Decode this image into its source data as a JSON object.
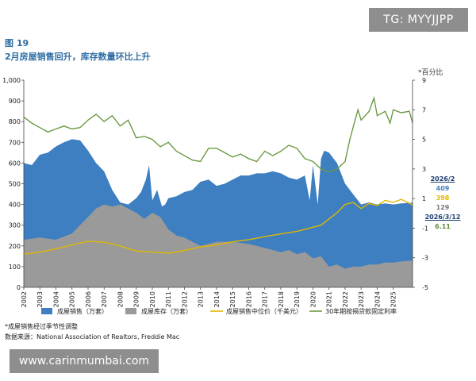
{
  "figure": {
    "number": "图 19",
    "title": "2月房屋销售回升，库存数量环比上升",
    "right_axis_unit": "*百分比"
  },
  "side_panel": {
    "date1": "2026/2",
    "sales": "409",
    "price": "398",
    "inventory": "129",
    "date2": "2026/3/12",
    "rate": "6.11",
    "colors": {
      "date": "#1f3f6e",
      "sales": "#3d7fc1",
      "price": "#e0b800",
      "inventory": "#777777",
      "rate": "#5e8a3a"
    }
  },
  "footnotes": {
    "note": "*成屋销售经过季节性调整",
    "source": "数据来源：National Association of Realtors, Freddie Mac"
  },
  "watermarks": {
    "tg": "TG: MYYJJPP",
    "url": "www.carinmumbai.com"
  },
  "chart_data": {
    "type": "area",
    "title": "2月房屋销售回升，库存数量环比上升",
    "x_ticks": [
      "2002",
      "2003",
      "2004",
      "2005",
      "2006",
      "2007",
      "2008",
      "2009",
      "2010",
      "2011",
      "2012",
      "2013",
      "2014",
      "2015",
      "2016",
      "2017",
      "2018",
      "2019",
      "2020",
      "2021",
      "2022",
      "2023",
      "2024",
      "2025"
    ],
    "x_range": [
      2002,
      2026.2
    ],
    "y_left": {
      "ticks": [
        "1,000",
        "900",
        "800",
        "700",
        "600",
        "500",
        "400",
        "300",
        "200",
        "100",
        "0"
      ],
      "range": [
        0,
        1000
      ]
    },
    "y_right": {
      "ticks": [
        "9",
        "7",
        "5",
        "3",
        "1",
        "-1",
        "-3",
        "-5"
      ],
      "range": [
        -5,
        9
      ],
      "label": "*百分比"
    },
    "grid": false,
    "legend_position": "bottom",
    "series": [
      {
        "name": "成屋销售（万套）",
        "kind": "area",
        "axis": "left",
        "color": "#3d7fc1",
        "points": [
          [
            2002,
            600
          ],
          [
            2002.5,
            590
          ],
          [
            2003,
            640
          ],
          [
            2003.5,
            650
          ],
          [
            2004,
            680
          ],
          [
            2004.5,
            700
          ],
          [
            2005,
            715
          ],
          [
            2005.5,
            710
          ],
          [
            2006,
            660
          ],
          [
            2006.5,
            600
          ],
          [
            2007,
            560
          ],
          [
            2007.5,
            470
          ],
          [
            2008,
            410
          ],
          [
            2008.5,
            400
          ],
          [
            2009,
            430
          ],
          [
            2009.3,
            460
          ],
          [
            2009.6,
            520
          ],
          [
            2009.8,
            590
          ],
          [
            2010,
            420
          ],
          [
            2010.3,
            470
          ],
          [
            2010.6,
            390
          ],
          [
            2010.8,
            400
          ],
          [
            2011,
            430
          ],
          [
            2011.5,
            440
          ],
          [
            2012,
            460
          ],
          [
            2012.5,
            470
          ],
          [
            2013,
            510
          ],
          [
            2013.5,
            520
          ],
          [
            2014,
            490
          ],
          [
            2014.5,
            500
          ],
          [
            2015,
            520
          ],
          [
            2015.5,
            540
          ],
          [
            2016,
            540
          ],
          [
            2016.5,
            550
          ],
          [
            2017,
            550
          ],
          [
            2017.5,
            560
          ],
          [
            2018,
            550
          ],
          [
            2018.5,
            530
          ],
          [
            2019,
            520
          ],
          [
            2019.5,
            540
          ],
          [
            2019.8,
            420
          ],
          [
            2020,
            590
          ],
          [
            2020.3,
            400
          ],
          [
            2020.5,
            620
          ],
          [
            2020.7,
            660
          ],
          [
            2021,
            650
          ],
          [
            2021.5,
            600
          ],
          [
            2022,
            500
          ],
          [
            2022.5,
            450
          ],
          [
            2023,
            400
          ],
          [
            2023.5,
            410
          ],
          [
            2024,
            400
          ],
          [
            2024.5,
            405
          ],
          [
            2025,
            400
          ],
          [
            2025.5,
            405
          ],
          [
            2026.2,
            409
          ]
        ]
      },
      {
        "name": "成屋库存（万套）",
        "kind": "area",
        "axis": "left",
        "color": "#9a9a9a",
        "points": [
          [
            2002,
            230
          ],
          [
            2003,
            240
          ],
          [
            2004,
            230
          ],
          [
            2005,
            260
          ],
          [
            2006,
            340
          ],
          [
            2006.5,
            380
          ],
          [
            2007,
            400
          ],
          [
            2007.5,
            390
          ],
          [
            2008,
            400
          ],
          [
            2008.5,
            380
          ],
          [
            2009,
            360
          ],
          [
            2009.5,
            330
          ],
          [
            2010,
            360
          ],
          [
            2010.5,
            340
          ],
          [
            2011,
            280
          ],
          [
            2011.5,
            250
          ],
          [
            2012,
            240
          ],
          [
            2012.5,
            220
          ],
          [
            2013,
            200
          ],
          [
            2014,
            220
          ],
          [
            2015,
            220
          ],
          [
            2016,
            210
          ],
          [
            2017,
            190
          ],
          [
            2018,
            170
          ],
          [
            2018.5,
            180
          ],
          [
            2019,
            160
          ],
          [
            2019.5,
            170
          ],
          [
            2020,
            140
          ],
          [
            2020.5,
            150
          ],
          [
            2021,
            100
          ],
          [
            2021.5,
            110
          ],
          [
            2022,
            90
          ],
          [
            2022.5,
            100
          ],
          [
            2023,
            100
          ],
          [
            2023.5,
            110
          ],
          [
            2024,
            110
          ],
          [
            2024.5,
            120
          ],
          [
            2025,
            120
          ],
          [
            2025.5,
            125
          ],
          [
            2026.2,
            129
          ]
        ]
      },
      {
        "name": "成屋销售中位价（千美元）",
        "kind": "line",
        "axis": "left",
        "color": "#e0b800",
        "points": [
          [
            2002,
            160
          ],
          [
            2003,
            170
          ],
          [
            2004,
            185
          ],
          [
            2005,
            205
          ],
          [
            2006,
            222
          ],
          [
            2007,
            218
          ],
          [
            2008,
            200
          ],
          [
            2009,
            175
          ],
          [
            2010,
            170
          ],
          [
            2011,
            165
          ],
          [
            2012,
            178
          ],
          [
            2013,
            195
          ],
          [
            2014,
            205
          ],
          [
            2015,
            220
          ],
          [
            2016,
            230
          ],
          [
            2017,
            245
          ],
          [
            2018,
            258
          ],
          [
            2019,
            270
          ],
          [
            2020,
            290
          ],
          [
            2020.5,
            300
          ],
          [
            2021,
            330
          ],
          [
            2021.5,
            360
          ],
          [
            2022,
            400
          ],
          [
            2022.5,
            410
          ],
          [
            2023,
            380
          ],
          [
            2023.5,
            405
          ],
          [
            2024,
            395
          ],
          [
            2024.5,
            420
          ],
          [
            2025,
            410
          ],
          [
            2025.5,
            425
          ],
          [
            2026.2,
            398
          ]
        ]
      },
      {
        "name": "30年期按揭贷款固定利率",
        "kind": "line",
        "axis": "right",
        "color": "#6d9a45",
        "points": [
          [
            2002,
            6.5
          ],
          [
            2002.5,
            6.1
          ],
          [
            2003,
            5.8
          ],
          [
            2003.5,
            5.5
          ],
          [
            2004,
            5.7
          ],
          [
            2004.5,
            5.9
          ],
          [
            2005,
            5.7
          ],
          [
            2005.5,
            5.8
          ],
          [
            2006,
            6.3
          ],
          [
            2006.5,
            6.7
          ],
          [
            2007,
            6.2
          ],
          [
            2007.5,
            6.6
          ],
          [
            2008,
            5.9
          ],
          [
            2008.5,
            6.3
          ],
          [
            2009,
            5.1
          ],
          [
            2009.5,
            5.2
          ],
          [
            2010,
            5.0
          ],
          [
            2010.5,
            4.5
          ],
          [
            2011,
            4.8
          ],
          [
            2011.5,
            4.2
          ],
          [
            2012,
            3.9
          ],
          [
            2012.5,
            3.6
          ],
          [
            2013,
            3.5
          ],
          [
            2013.5,
            4.4
          ],
          [
            2014,
            4.4
          ],
          [
            2014.5,
            4.1
          ],
          [
            2015,
            3.8
          ],
          [
            2015.5,
            4.0
          ],
          [
            2016,
            3.7
          ],
          [
            2016.5,
            3.5
          ],
          [
            2017,
            4.2
          ],
          [
            2017.5,
            3.9
          ],
          [
            2018,
            4.2
          ],
          [
            2018.5,
            4.6
          ],
          [
            2019,
            4.4
          ],
          [
            2019.5,
            3.7
          ],
          [
            2020,
            3.5
          ],
          [
            2020.5,
            3.0
          ],
          [
            2021,
            2.8
          ],
          [
            2021.5,
            3.0
          ],
          [
            2022,
            3.5
          ],
          [
            2022.3,
            5.0
          ],
          [
            2022.8,
            7.0
          ],
          [
            2023,
            6.3
          ],
          [
            2023.5,
            6.9
          ],
          [
            2023.8,
            7.8
          ],
          [
            2024,
            6.6
          ],
          [
            2024.5,
            6.9
          ],
          [
            2024.8,
            6.1
          ],
          [
            2025,
            7.0
          ],
          [
            2025.5,
            6.8
          ],
          [
            2026,
            6.9
          ],
          [
            2026.2,
            6.11
          ]
        ]
      }
    ],
    "legend": [
      {
        "name": "成屋销售（万套）",
        "color": "#3d7fc1",
        "type": "box"
      },
      {
        "name": "成屋库存（万套）",
        "color": "#9a9a9a",
        "type": "box"
      },
      {
        "name": "成屋销售中位价（千美元）",
        "color": "#e0b800",
        "type": "line"
      },
      {
        "name": "30年期按揭贷款固定利率",
        "color": "#6d9a45",
        "type": "line"
      }
    ]
  }
}
